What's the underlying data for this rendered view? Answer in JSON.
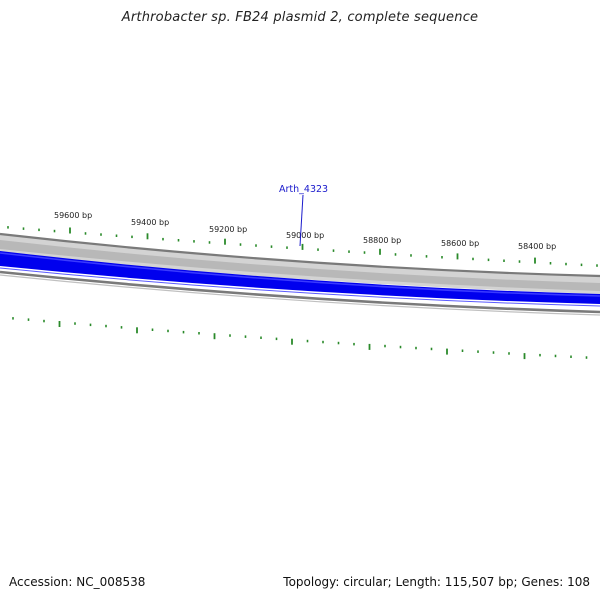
{
  "title": "Arthrobacter sp. FB24 plasmid 2, complete sequence",
  "footer": {
    "accession_label": "Accession: NC_008538",
    "summary_label": "Topology: circular; Length: 115,507 bp; Genes: 108"
  },
  "map": {
    "tick_labels": [
      "59600 bp",
      "59400 bp",
      "59200 bp",
      "59000 bp",
      "58800 bp",
      "58600 bp",
      "58400 bp"
    ],
    "gene_labels": [
      "Arth_4323"
    ],
    "colors": {
      "backbone": "#808080",
      "backbone_fill": "#c8c8c8",
      "gene_strand": "#0000ee",
      "tick_marks": "#2a8a2a",
      "label_text": "#222222",
      "gene_label_text": "#1a1acc"
    }
  }
}
